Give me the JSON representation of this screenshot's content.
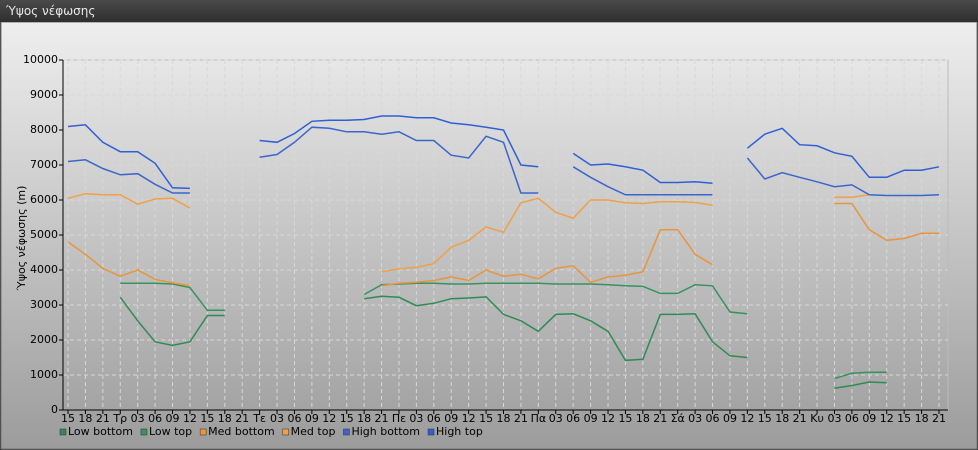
{
  "chart_data": {
    "type": "line",
    "title": "Ύψος νέφωσης",
    "y_label": "Ύψος νέφωσης (m)",
    "categories": [
      "15",
      "18",
      "21",
      "Τρ",
      "03",
      "06",
      "09",
      "12",
      "15",
      "18",
      "21",
      "Τε",
      "03",
      "06",
      "09",
      "12",
      "15",
      "18",
      "21",
      "Πε",
      "03",
      "06",
      "09",
      "12",
      "15",
      "18",
      "21",
      "Πα",
      "03",
      "06",
      "09",
      "12",
      "15",
      "18",
      "21",
      "Σά",
      "03",
      "06",
      "09",
      "12",
      "15",
      "18",
      "21",
      "Κυ",
      "03",
      "06",
      "09",
      "12",
      "15",
      "18",
      "21"
    ],
    "ylim": [
      0,
      10000
    ],
    "yticks": [
      0,
      1000,
      2000,
      3000,
      4000,
      5000,
      6000,
      7000,
      8000,
      9000,
      10000
    ],
    "grid": true,
    "series": [
      {
        "name": "Low bottom",
        "color": "#2e8b57",
        "values": [
          null,
          null,
          null,
          3220,
          2550,
          1950,
          1850,
          1950,
          2700,
          2700,
          null,
          null,
          null,
          null,
          null,
          null,
          null,
          3180,
          3250,
          3220,
          2980,
          3050,
          3180,
          3200,
          3230,
          2730,
          2550,
          2250,
          2730,
          2750,
          2550,
          2250,
          1420,
          1450,
          2730,
          2730,
          2750,
          1950,
          1550,
          1500,
          null,
          null,
          null,
          null,
          620,
          700,
          800,
          780,
          null,
          null,
          null
        ]
      },
      {
        "name": "Low top",
        "color": "#35935f",
        "values": [
          null,
          null,
          null,
          3620,
          3620,
          3620,
          3600,
          3500,
          2850,
          2850,
          null,
          null,
          null,
          null,
          null,
          null,
          null,
          3300,
          3580,
          3600,
          3620,
          3620,
          3600,
          3600,
          3620,
          3620,
          3620,
          3620,
          3600,
          3600,
          3600,
          3580,
          3550,
          3530,
          3330,
          3330,
          3580,
          3550,
          2800,
          2750,
          null,
          null,
          null,
          null,
          900,
          1050,
          1080,
          1080,
          null,
          null,
          null
        ]
      },
      {
        "name": "Med bottom",
        "color": "#e8953c",
        "values": [
          4800,
          4450,
          4050,
          3820,
          4000,
          3730,
          3630,
          3550,
          null,
          null,
          null,
          null,
          null,
          null,
          null,
          null,
          null,
          null,
          3550,
          3620,
          3650,
          3700,
          3800,
          3700,
          4000,
          3820,
          3880,
          3750,
          4050,
          4120,
          3650,
          3800,
          3850,
          3950,
          5150,
          5150,
          4450,
          4150,
          null,
          null,
          null,
          null,
          null,
          null,
          5900,
          5900,
          5150,
          4850,
          4900,
          5050,
          5050
        ]
      },
      {
        "name": "Med top",
        "color": "#efa048",
        "values": [
          6050,
          6180,
          6150,
          6150,
          5880,
          6030,
          6050,
          5770,
          null,
          null,
          null,
          null,
          null,
          null,
          null,
          null,
          null,
          null,
          3950,
          4030,
          4080,
          4180,
          4650,
          4850,
          5230,
          5080,
          5920,
          6050,
          5650,
          5480,
          6000,
          6000,
          5920,
          5900,
          5950,
          5950,
          5930,
          5850,
          null,
          null,
          null,
          null,
          null,
          null,
          6080,
          6080,
          6150,
          null,
          null,
          null,
          null
        ]
      },
      {
        "name": "High bottom",
        "color": "#3a66cc",
        "values": [
          7100,
          7150,
          6900,
          6720,
          6750,
          6450,
          6200,
          6200,
          null,
          null,
          null,
          7220,
          7300,
          7650,
          8080,
          8050,
          7950,
          7950,
          7880,
          7950,
          7700,
          7700,
          7280,
          7200,
          7820,
          7650,
          6200,
          6200,
          null,
          6950,
          6650,
          6380,
          6150,
          6150,
          6150,
          6150,
          6150,
          6150,
          null,
          7200,
          6600,
          6780,
          6650,
          6520,
          6380,
          6430,
          6150,
          6130,
          6130,
          6130,
          6150
        ]
      },
      {
        "name": "High top",
        "color": "#2f5fd4",
        "values": [
          8100,
          8150,
          7650,
          7380,
          7380,
          7050,
          6350,
          6330,
          null,
          null,
          null,
          7700,
          7650,
          7900,
          8250,
          8280,
          8280,
          8300,
          8400,
          8400,
          8350,
          8350,
          8200,
          8150,
          8080,
          8000,
          7000,
          6950,
          null,
          7330,
          7000,
          7030,
          6950,
          6850,
          6500,
          6500,
          6520,
          6480,
          null,
          7480,
          7880,
          8050,
          7580,
          7550,
          7350,
          7250,
          6650,
          6650,
          6850,
          6850,
          6950
        ]
      }
    ]
  }
}
